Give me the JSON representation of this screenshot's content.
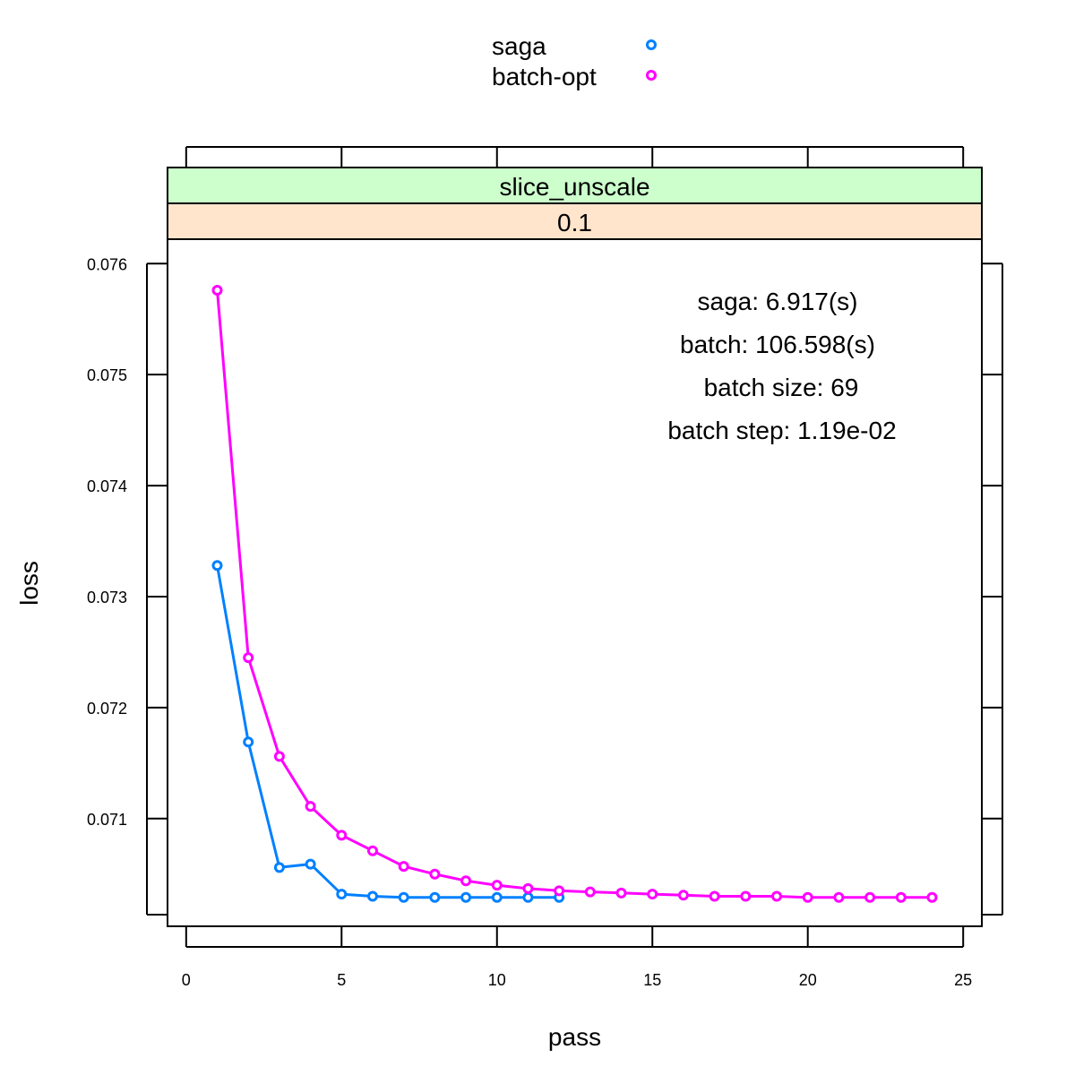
{
  "chart_data": {
    "type": "line",
    "xlabel": "pass",
    "ylabel": "loss",
    "xlim": [
      -0.6,
      25.6
    ],
    "ylim": [
      0.07003,
      0.07622
    ],
    "x_ticks": [
      0,
      5,
      10,
      15,
      20,
      25
    ],
    "x_tick_labels": [
      "0",
      "5",
      "10",
      "15",
      "20",
      "25"
    ],
    "y_ticks": [
      0.071,
      0.072,
      0.073,
      0.074,
      0.075,
      0.076
    ],
    "y_tick_labels": [
      "0.071",
      "0.072",
      "0.073",
      "0.074",
      "0.075",
      "0.076"
    ],
    "strips": [
      {
        "label": "slice_unscale",
        "color": "#ccffcc"
      },
      {
        "label": "0.1",
        "color": "#ffe5cc"
      }
    ],
    "legend_position": "top",
    "grid": false,
    "annotations": [
      "saga: 6.917(s)",
      "batch: 106.598(s)",
      "batch size: 69",
      "batch step: 1.19e-02"
    ],
    "series": [
      {
        "name": "saga",
        "color": "#0080ff",
        "x": [
          1,
          2,
          3,
          4,
          5,
          6,
          7,
          8,
          9,
          10,
          11,
          12
        ],
        "values": [
          0.07328,
          0.07169,
          0.07056,
          0.07059,
          0.07032,
          0.0703,
          0.07029,
          0.07029,
          0.07029,
          0.07029,
          0.07029,
          0.07029
        ]
      },
      {
        "name": "batch-opt",
        "color": "#ff00ff",
        "x": [
          1,
          2,
          3,
          4,
          5,
          6,
          7,
          8,
          9,
          10,
          11,
          12,
          13,
          14,
          15,
          16,
          17,
          18,
          19,
          20,
          21,
          22,
          23,
          24
        ],
        "values": [
          0.07576,
          0.07245,
          0.07156,
          0.07111,
          0.07085,
          0.07071,
          0.07057,
          0.0705,
          0.07044,
          0.0704,
          0.07037,
          0.07035,
          0.07034,
          0.07033,
          0.07032,
          0.07031,
          0.0703,
          0.0703,
          0.0703,
          0.07029,
          0.07029,
          0.07029,
          0.07029,
          0.07029
        ]
      }
    ]
  }
}
